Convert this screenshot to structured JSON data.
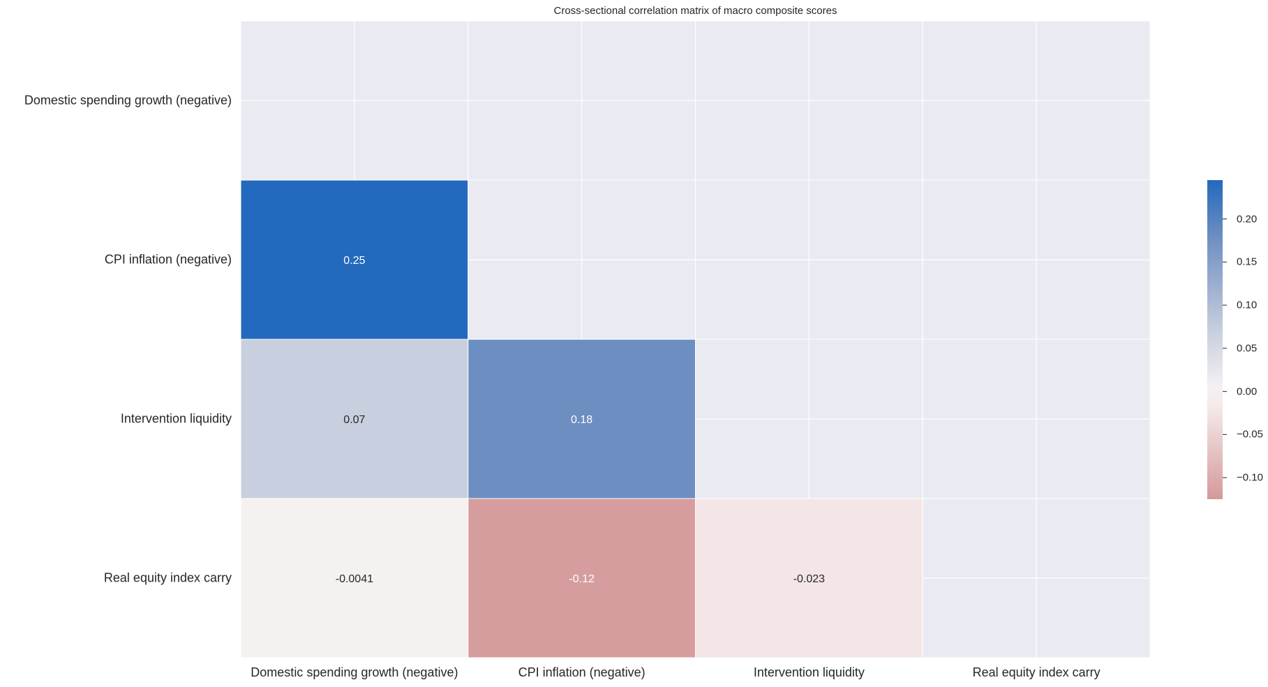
{
  "chart_data": {
    "type": "heatmap",
    "title": "Cross-sectional correlation matrix of macro composite scores",
    "labels": [
      "Domestic spending growth (negative)",
      "CPI inflation (negative)",
      "Intervention liquidity",
      "Real equity index carry"
    ],
    "mask": "upper triangle including diagonal",
    "values": [
      [
        null,
        null,
        null,
        null
      ],
      [
        0.25,
        null,
        null,
        null
      ],
      [
        0.07,
        0.18,
        null,
        null
      ],
      [
        -0.0041,
        -0.12,
        -0.023,
        null
      ]
    ],
    "annotations": [
      [
        null,
        null,
        null,
        null
      ],
      [
        "0.25",
        null,
        null,
        null
      ],
      [
        "0.07",
        "0.18",
        null,
        null
      ],
      [
        "-0.0041",
        "-0.12",
        "-0.023",
        null
      ]
    ],
    "colorbar": {
      "vmin": -0.125,
      "vmax": 0.245,
      "center": 0,
      "ticks": [
        0.2,
        0.15,
        0.1,
        0.05,
        0.0,
        -0.05,
        -0.1
      ],
      "tick_labels": [
        "0.20",
        "0.15",
        "0.10",
        "0.05",
        "0.00",
        "−0.05",
        "−0.10"
      ],
      "colors": {
        "negative": "#d4999a",
        "center": "#f7f3f3",
        "positive": "#2369bd"
      }
    },
    "mask_color": "#eaeaf2"
  }
}
